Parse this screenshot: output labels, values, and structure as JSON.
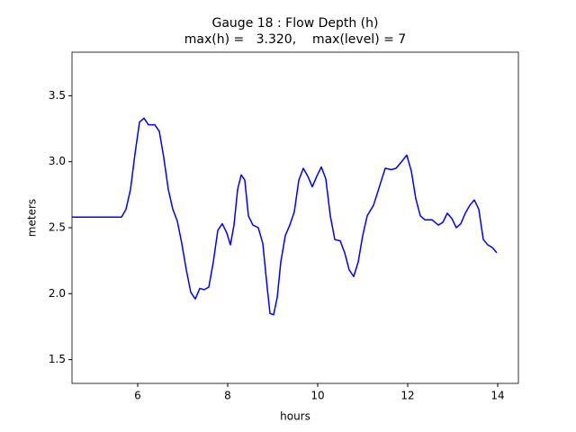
{
  "chart_data": {
    "type": "line",
    "title": "Gauge 18 : Flow Depth (h)",
    "subtitle": "max(h) =   3.320,    max(level) = 7",
    "x_label": "hours",
    "y_label": "meters",
    "xlim": [
      4.54,
      14.46
    ],
    "ylim": [
      1.32,
      3.83
    ],
    "xticks": [
      6,
      8,
      10,
      12,
      14
    ],
    "yticks": [
      1.5,
      {
        "value": 2,
        "label": "2.0"
      },
      2.5,
      {
        "value": 3,
        "label": "3.0"
      },
      3.5
    ],
    "grid": false,
    "x": [
      4.54,
      5.64,
      5.74,
      5.84,
      5.94,
      6.04,
      6.14,
      6.24,
      6.38,
      6.48,
      6.58,
      6.68,
      6.78,
      6.88,
      6.98,
      7.08,
      7.18,
      7.28,
      7.38,
      7.48,
      7.58,
      7.68,
      7.78,
      7.88,
      7.98,
      8.06,
      8.14,
      8.22,
      8.3,
      8.38,
      8.46,
      8.56,
      8.68,
      8.78,
      8.88,
      8.94,
      9.02,
      9.1,
      9.18,
      9.28,
      9.38,
      9.48,
      9.58,
      9.68,
      9.78,
      9.88,
      9.98,
      10.08,
      10.18,
      10.28,
      10.38,
      10.5,
      10.6,
      10.7,
      10.8,
      10.9,
      11.0,
      11.1,
      11.24,
      11.38,
      11.5,
      11.64,
      11.74,
      11.84,
      11.98,
      12.08,
      12.18,
      12.28,
      12.38,
      12.54,
      12.68,
      12.78,
      12.88,
      12.98,
      13.08,
      13.18,
      13.28,
      13.38,
      13.48,
      13.58,
      13.68,
      13.78,
      13.88,
      13.98
    ],
    "series": [
      {
        "name": "h",
        "color": "#0000ff",
        "values": [
          2.58,
          2.58,
          2.64,
          2.79,
          3.06,
          3.3,
          3.33,
          3.28,
          3.28,
          3.23,
          3.03,
          2.79,
          2.64,
          2.55,
          2.38,
          2.18,
          2.01,
          1.96,
          2.04,
          2.03,
          2.05,
          2.24,
          2.48,
          2.53,
          2.46,
          2.37,
          2.52,
          2.79,
          2.9,
          2.86,
          2.59,
          2.52,
          2.5,
          2.38,
          2.04,
          1.85,
          1.84,
          1.97,
          2.24,
          2.44,
          2.52,
          2.62,
          2.86,
          2.95,
          2.89,
          2.81,
          2.89,
          2.96,
          2.87,
          2.59,
          2.41,
          2.4,
          2.31,
          2.18,
          2.13,
          2.24,
          2.44,
          2.59,
          2.67,
          2.82,
          2.95,
          2.94,
          2.95,
          2.99,
          3.05,
          2.93,
          2.72,
          2.59,
          2.56,
          2.56,
          2.52,
          2.54,
          2.61,
          2.57,
          2.5,
          2.53,
          2.61,
          2.67,
          2.71,
          2.64,
          2.41,
          2.37,
          2.35,
          2.31
        ]
      }
    ]
  }
}
